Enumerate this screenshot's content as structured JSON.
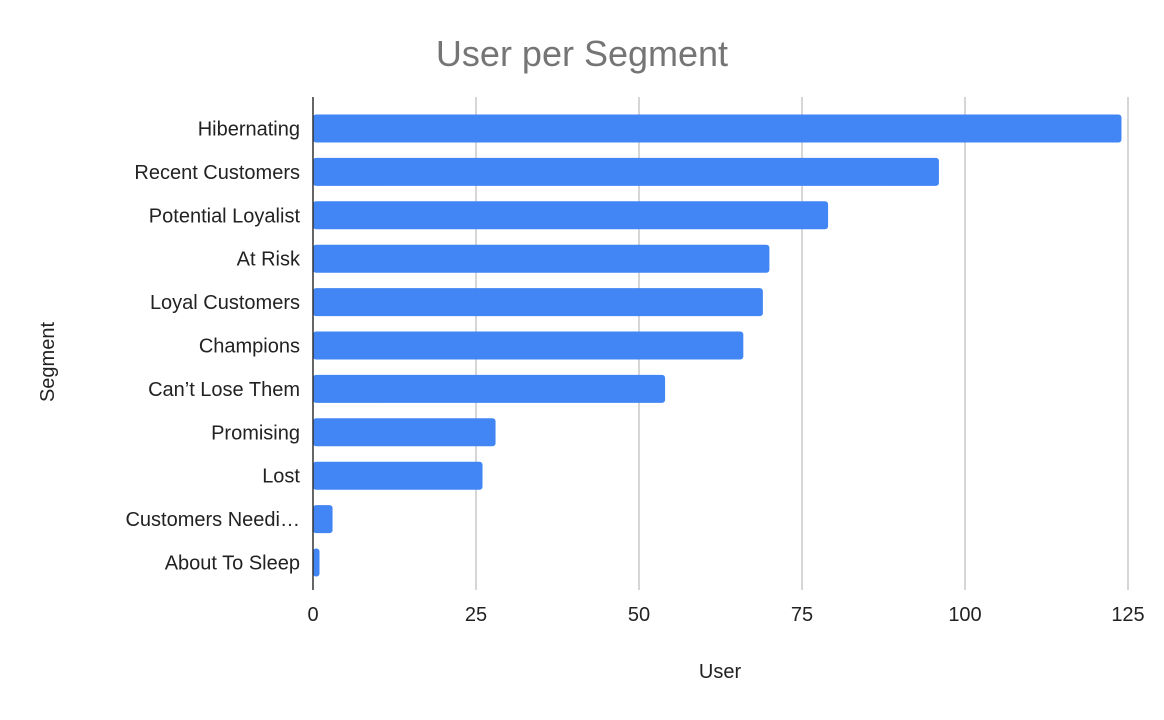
{
  "chart_data": {
    "type": "bar",
    "orientation": "horizontal",
    "title": "User per Segment",
    "xlabel": "User",
    "ylabel": "Segment",
    "categories": [
      "Hibernating",
      "Recent Customers",
      "Potential Loyalist",
      "At Risk",
      "Loyal Customers",
      "Champions",
      "Can’t Lose Them",
      "Promising",
      "Lost",
      "Customers Needi…",
      "About To Sleep"
    ],
    "values": [
      124,
      96,
      79,
      70,
      69,
      66,
      54,
      28,
      26,
      3,
      1
    ],
    "xlim": [
      0,
      125
    ],
    "xticks": [
      "0",
      "25",
      "50",
      "75",
      "100",
      "125"
    ],
    "grid": true,
    "legend": "none",
    "bar_color": "#4285f4"
  }
}
